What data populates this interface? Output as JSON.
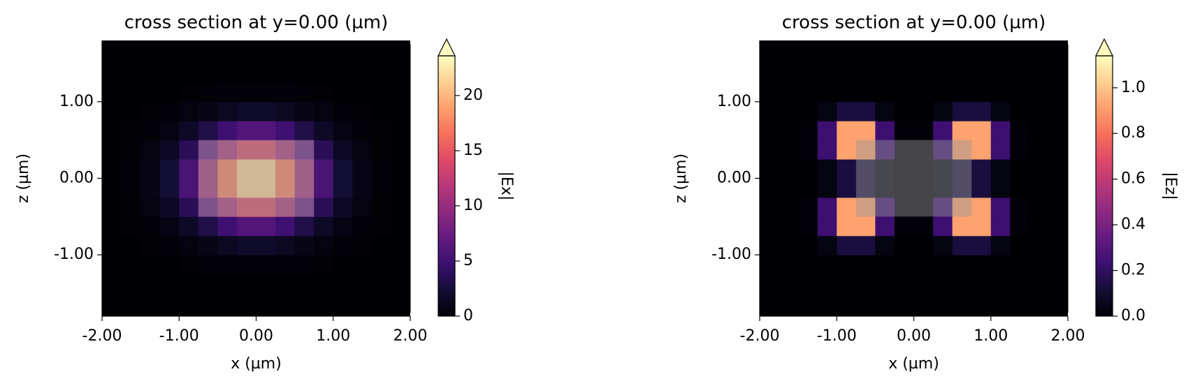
{
  "chart_data": [
    {
      "type": "heatmap",
      "title": "cross section at y=0.00 (µm)",
      "xlabel": "x (µm)",
      "ylabel": "z (µm)",
      "x": [
        -1.875,
        -1.625,
        -1.375,
        -1.125,
        -0.875,
        -0.625,
        -0.375,
        -0.125,
        0.125,
        0.375,
        0.625,
        0.875,
        1.125,
        1.375,
        1.625,
        1.875
      ],
      "y": [
        -1.625,
        -1.375,
        -1.125,
        -0.875,
        -0.625,
        -0.375,
        -0.125,
        0.125,
        0.375,
        0.625,
        0.875,
        1.125,
        1.375,
        1.625
      ],
      "z": [
        [
          0,
          0,
          0,
          0,
          0,
          0,
          0,
          0,
          0,
          0,
          0,
          0,
          0,
          0,
          0,
          0
        ],
        [
          0,
          0,
          0,
          0,
          0,
          0,
          0,
          0,
          0,
          0,
          0,
          0,
          0,
          0,
          0,
          0
        ],
        [
          0,
          0,
          0,
          0,
          0.1,
          0.2,
          0.3,
          0.3,
          0.3,
          0.3,
          0.2,
          0.1,
          0,
          0,
          0,
          0
        ],
        [
          0,
          0,
          0.1,
          0.2,
          0.5,
          0.9,
          1.4,
          1.8,
          1.8,
          1.4,
          0.9,
          0.5,
          0.2,
          0.1,
          0,
          0
        ],
        [
          0,
          0.1,
          0.2,
          0.7,
          1.6,
          3.1,
          4.9,
          6.1,
          6.1,
          4.9,
          3.1,
          1.6,
          0.7,
          0.2,
          0.1,
          0
        ],
        [
          0,
          0.1,
          0.5,
          1.5,
          3.7,
          7.2,
          11.2,
          14,
          14,
          11.2,
          7.2,
          3.7,
          1.5,
          0.5,
          0.1,
          0
        ],
        [
          0,
          0.2,
          0.8,
          2.3,
          5.6,
          10.9,
          17.1,
          21.3,
          21.3,
          17.1,
          10.9,
          5.6,
          2.3,
          0.8,
          0.2,
          0
        ],
        [
          0,
          0.2,
          0.8,
          2.3,
          5.6,
          10.9,
          17.1,
          21.3,
          21.3,
          17.1,
          10.9,
          5.6,
          2.3,
          0.8,
          0.2,
          0
        ],
        [
          0,
          0.1,
          0.5,
          1.5,
          3.7,
          7.2,
          11.2,
          14,
          14,
          11.2,
          7.2,
          3.7,
          1.5,
          0.5,
          0.1,
          0
        ],
        [
          0,
          0.1,
          0.2,
          0.7,
          1.6,
          3.1,
          4.9,
          6.1,
          6.1,
          4.9,
          3.1,
          1.6,
          0.7,
          0.2,
          0.1,
          0
        ],
        [
          0,
          0,
          0.1,
          0.2,
          0.5,
          0.9,
          1.4,
          1.8,
          1.8,
          1.4,
          0.9,
          0.5,
          0.2,
          0.1,
          0,
          0
        ],
        [
          0,
          0,
          0,
          0,
          0.1,
          0.2,
          0.3,
          0.3,
          0.3,
          0.3,
          0.2,
          0.1,
          0,
          0,
          0,
          0
        ],
        [
          0,
          0,
          0,
          0,
          0,
          0,
          0,
          0,
          0,
          0,
          0,
          0,
          0,
          0,
          0,
          0
        ],
        [
          0,
          0,
          0,
          0,
          0,
          0,
          0,
          0,
          0,
          0,
          0,
          0,
          0,
          0,
          0,
          0
        ]
      ],
      "xlim": [
        -2,
        2
      ],
      "ylim": [
        -1.8,
        1.8
      ],
      "xticks": [
        {
          "value": -2,
          "label": "-2.00"
        },
        {
          "value": -1,
          "label": "-1.00"
        },
        {
          "value": 0,
          "label": "0.00"
        },
        {
          "value": 1,
          "label": "1.00"
        },
        {
          "value": 2,
          "label": "2.00"
        }
      ],
      "yticks": [
        {
          "value": -1,
          "label": "-1.00"
        },
        {
          "value": 0,
          "label": "0.00"
        },
        {
          "value": 1,
          "label": "1.00"
        }
      ],
      "structure_box": {
        "x": [
          -0.75,
          0.75
        ],
        "y": [
          -0.5,
          0.5
        ]
      },
      "colorbar": {
        "label": "|Ex|",
        "colormap": "magma",
        "extend": "max",
        "clim": [
          0,
          23.6
        ],
        "ticks": [
          0,
          5,
          10,
          15,
          20
        ]
      }
    },
    {
      "type": "heatmap",
      "title": "cross section at y=0.00 (µm)",
      "xlabel": "x (µm)",
      "ylabel": "z (µm)",
      "x": [
        -1.875,
        -1.625,
        -1.375,
        -1.125,
        -0.875,
        -0.625,
        -0.375,
        -0.125,
        0.125,
        0.375,
        0.625,
        0.875,
        1.125,
        1.375,
        1.625,
        1.875
      ],
      "y": [
        -1.625,
        -1.375,
        -1.125,
        -0.875,
        -0.625,
        -0.375,
        -0.125,
        0.125,
        0.375,
        0.625,
        0.875,
        1.125,
        1.375,
        1.625
      ],
      "z": [
        [
          0,
          0,
          0,
          0,
          0,
          0,
          0,
          0,
          0,
          0,
          0,
          0,
          0,
          0,
          0,
          0
        ],
        [
          0,
          0,
          0,
          0,
          0,
          0,
          0,
          0,
          0,
          0,
          0,
          0,
          0,
          0,
          0,
          0
        ],
        [
          0,
          0,
          0,
          0,
          0,
          0,
          0,
          0,
          0,
          0,
          0,
          0,
          0,
          0,
          0,
          0
        ],
        [
          0,
          0,
          0,
          0.03,
          0.13,
          0.13,
          0.03,
          0,
          0,
          0.03,
          0.13,
          0.13,
          0.03,
          0,
          0,
          0
        ],
        [
          0,
          0,
          0.01,
          0.23,
          0.92,
          0.92,
          0.23,
          0.01,
          0.01,
          0.23,
          0.92,
          0.92,
          0.23,
          0.01,
          0,
          0
        ],
        [
          0,
          0,
          0.01,
          0.23,
          0.92,
          0.92,
          0.23,
          0.01,
          0.01,
          0.23,
          0.92,
          0.92,
          0.23,
          0.01,
          0,
          0
        ],
        [
          0,
          0,
          0,
          0.03,
          0.13,
          0.13,
          0.03,
          0,
          0,
          0.03,
          0.13,
          0.13,
          0.03,
          0,
          0,
          0
        ],
        [
          0,
          0,
          0,
          0.03,
          0.13,
          0.13,
          0.03,
          0,
          0,
          0.03,
          0.13,
          0.13,
          0.03,
          0,
          0,
          0
        ],
        [
          0,
          0,
          0.01,
          0.23,
          0.92,
          0.92,
          0.23,
          0.01,
          0.01,
          0.23,
          0.92,
          0.92,
          0.23,
          0.01,
          0,
          0
        ],
        [
          0,
          0,
          0.01,
          0.23,
          0.92,
          0.92,
          0.23,
          0.01,
          0.01,
          0.23,
          0.92,
          0.92,
          0.23,
          0.01,
          0,
          0
        ],
        [
          0,
          0,
          0,
          0.03,
          0.13,
          0.13,
          0.03,
          0,
          0,
          0.03,
          0.13,
          0.13,
          0.03,
          0,
          0,
          0
        ],
        [
          0,
          0,
          0,
          0,
          0,
          0,
          0,
          0,
          0,
          0,
          0,
          0,
          0,
          0,
          0,
          0
        ],
        [
          0,
          0,
          0,
          0,
          0,
          0,
          0,
          0,
          0,
          0,
          0,
          0,
          0,
          0,
          0,
          0
        ],
        [
          0,
          0,
          0,
          0,
          0,
          0,
          0,
          0,
          0,
          0,
          0,
          0,
          0,
          0,
          0,
          0
        ]
      ],
      "xlim": [
        -2,
        2
      ],
      "ylim": [
        -1.8,
        1.8
      ],
      "xticks": [
        {
          "value": -2,
          "label": "-2.00"
        },
        {
          "value": -1,
          "label": "-1.00"
        },
        {
          "value": 0,
          "label": "0.00"
        },
        {
          "value": 1,
          "label": "1.00"
        },
        {
          "value": 2,
          "label": "2.00"
        }
      ],
      "yticks": [
        {
          "value": -1,
          "label": "-1.00"
        },
        {
          "value": 0,
          "label": "0.00"
        },
        {
          "value": 1,
          "label": "1.00"
        }
      ],
      "structure_box": {
        "x": [
          -0.75,
          0.75
        ],
        "y": [
          -0.5,
          0.5
        ]
      },
      "colorbar": {
        "label": "|Ez|",
        "colormap": "magma",
        "extend": "max",
        "clim": [
          0,
          1.14
        ],
        "ticks": [
          {
            "value": 0,
            "label": "0.0"
          },
          {
            "value": 0.2,
            "label": "0.2"
          },
          {
            "value": 0.4,
            "label": "0.4"
          },
          {
            "value": 0.6,
            "label": "0.6"
          },
          {
            "value": 0.8,
            "label": "0.8"
          },
          {
            "value": 1,
            "label": "1.0"
          }
        ]
      }
    }
  ]
}
